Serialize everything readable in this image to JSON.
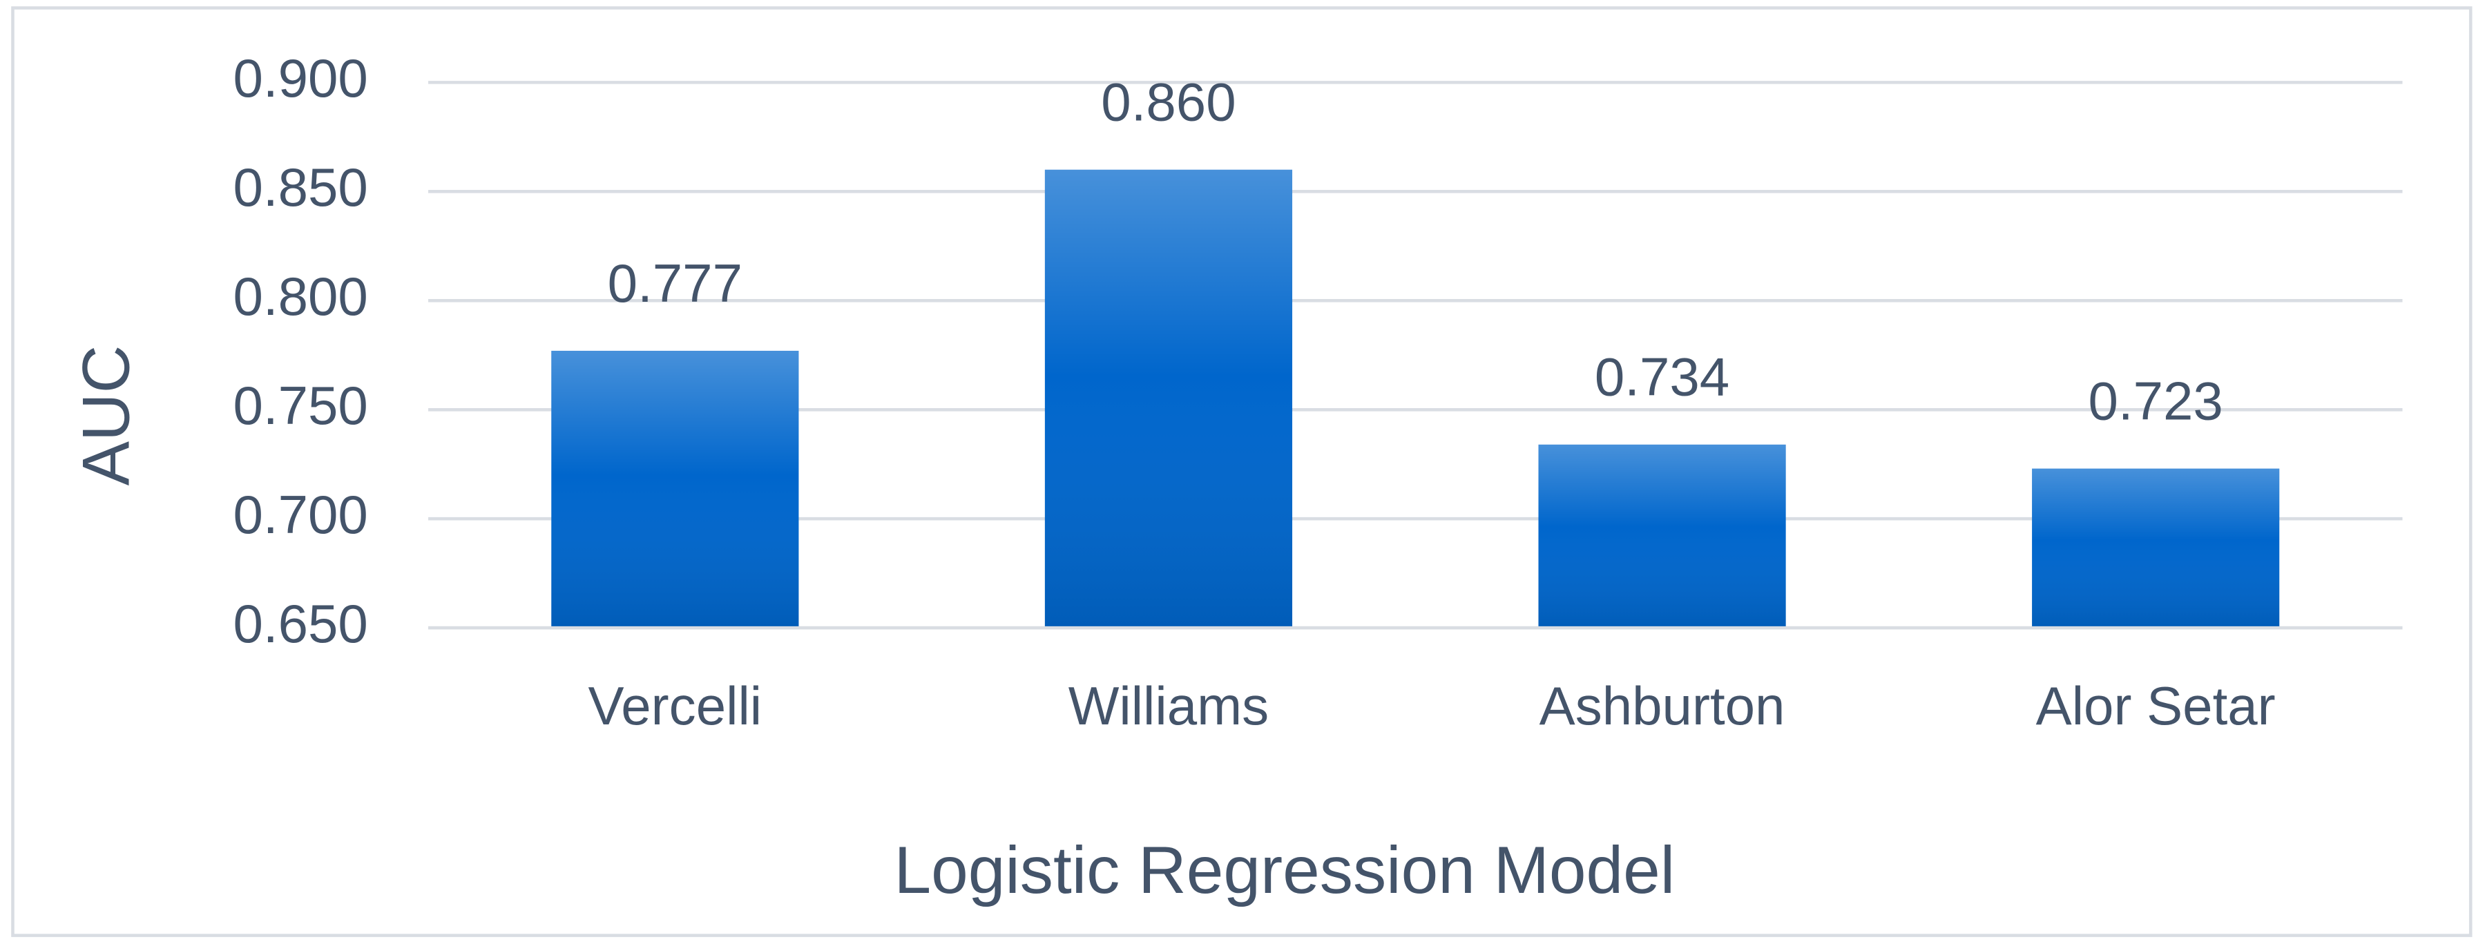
{
  "chart_data": {
    "type": "bar",
    "y_label": "AUC",
    "x_label": "Logistic Regression Model",
    "categories": [
      "Vercelli",
      "Williams",
      "Ashburton",
      "Alor Setar"
    ],
    "values": [
      0.777,
      0.86,
      0.734,
      0.723
    ],
    "value_labels": [
      "0.777",
      "0.860",
      "0.734",
      "0.723"
    ],
    "color": "#0066cc",
    "ylim": [
      0.65,
      0.9
    ],
    "yticks": [
      {
        "value": 0.65,
        "label": "0.650"
      },
      {
        "value": 0.7,
        "label": "0.700"
      },
      {
        "value": 0.75,
        "label": "0.750"
      },
      {
        "value": 0.8,
        "label": "0.800"
      },
      {
        "value": 0.85,
        "label": "0.850"
      },
      {
        "value": 0.9,
        "label": "0.900"
      }
    ],
    "grid": true
  }
}
